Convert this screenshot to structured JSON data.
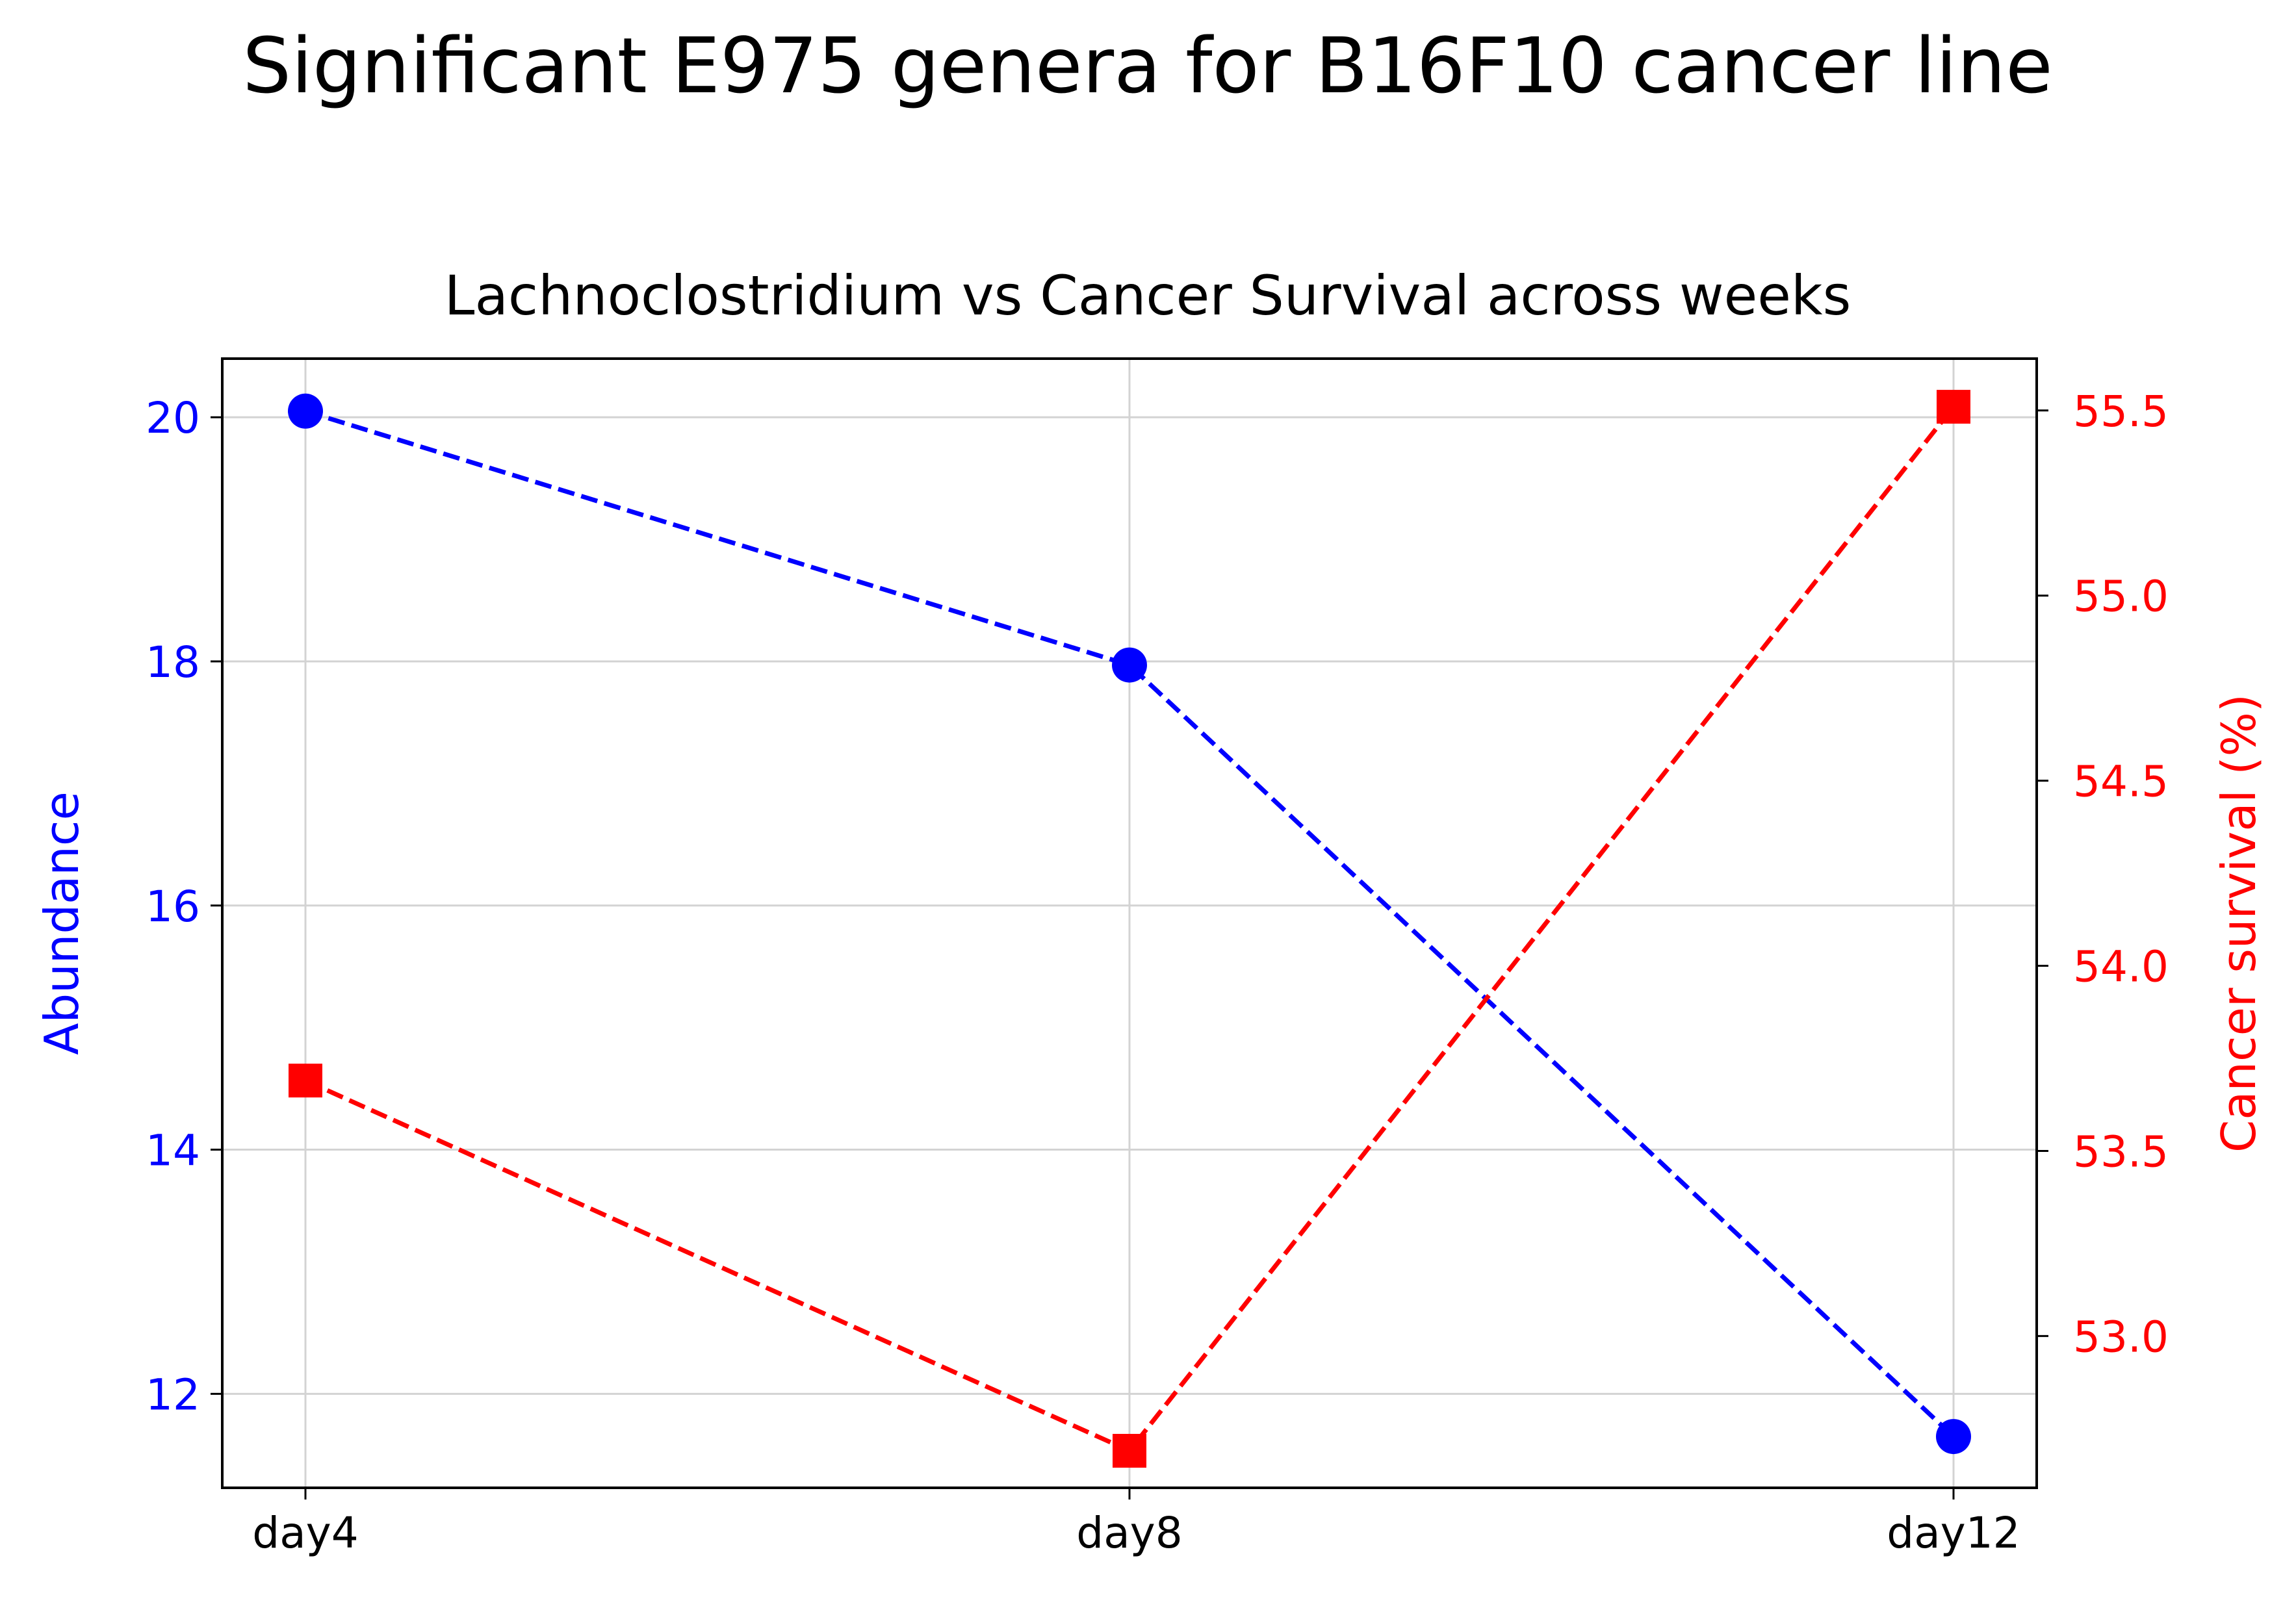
{
  "chart_data": {
    "type": "line",
    "suptitle": "Significant E975 genera for B16F10 cancer line",
    "title": "Lachnoclostridium vs Cancer Survival across weeks",
    "categories": [
      "day4",
      "day8",
      "day12"
    ],
    "grid": true,
    "left_axis": {
      "label": "Abundance",
      "color": "#0000ff",
      "ylim": [
        11.23,
        20.48
      ],
      "ticks": [
        12,
        14,
        16,
        18,
        20
      ],
      "tick_labels": [
        "12",
        "14",
        "16",
        "18",
        "20"
      ]
    },
    "right_axis": {
      "label": "Cancer survival (%)",
      "color": "#ff0000",
      "ylim": [
        52.59,
        55.64
      ],
      "ticks": [
        53.0,
        53.5,
        54.0,
        54.5,
        55.0,
        55.5
      ],
      "tick_labels": [
        "53.0",
        "53.5",
        "54.0",
        "54.5",
        "55.0",
        "55.5"
      ]
    },
    "series": [
      {
        "axis": "left",
        "color": "#0000ff",
        "marker": "circle",
        "linestyle": "dashed",
        "values": [
          20.05,
          17.97,
          11.65
        ]
      },
      {
        "axis": "right",
        "color": "#ff0000",
        "marker": "square",
        "linestyle": "dashed",
        "values": [
          53.69,
          52.69,
          55.51
        ]
      }
    ]
  }
}
